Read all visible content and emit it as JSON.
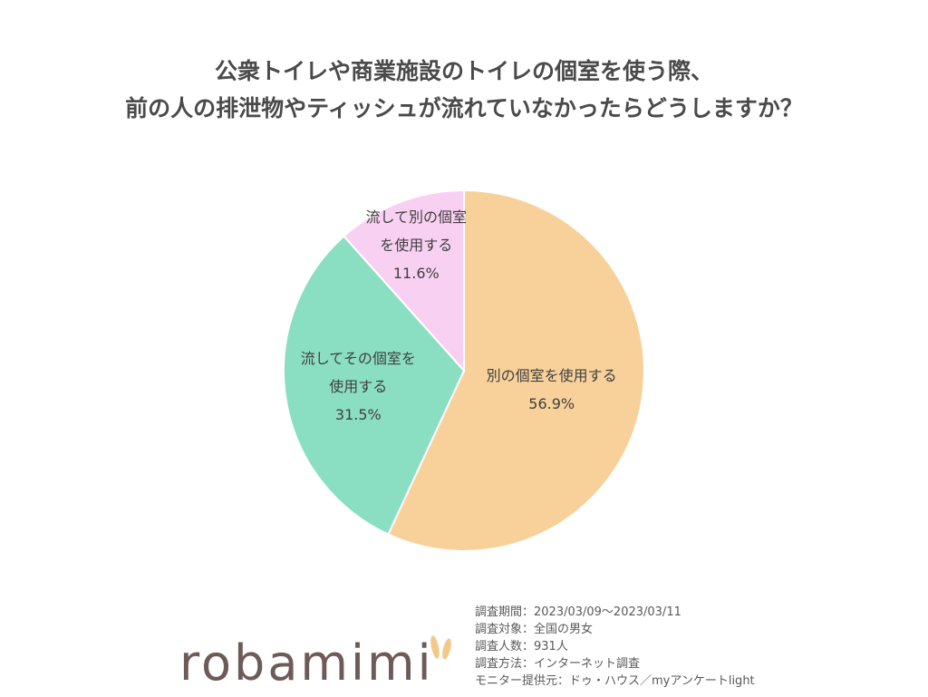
{
  "title": {
    "line1": "公衆トイレや商業施設のトイレの個室を使う際、",
    "line2": "前の人の排泄物やティッシュが流れていなかったらどうしますか？"
  },
  "chart_data": {
    "type": "pie",
    "title": "公衆トイレや商業施設のトイレの個室を使う際、前の人の排泄物やティッシュが流れていなかったらどうしますか？",
    "slices": [
      {
        "label_line1": "別の個室を使用する",
        "label_line2": "",
        "value": 56.9,
        "value_label": "56.9%",
        "color": "#f8d19a"
      },
      {
        "label_line1": "流してその個室を",
        "label_line2": "使用する",
        "value": 31.5,
        "value_label": "31.5%",
        "color": "#8adfc3"
      },
      {
        "label_line1": "流して別の個室",
        "label_line2": "を使用する",
        "value": 11.6,
        "value_label": "11.6%",
        "color": "#f8d0f2"
      }
    ],
    "start": "12 o'clock",
    "direction": "clockwise"
  },
  "logo": {
    "text": "robamimi",
    "accent_color": "#f3c98b"
  },
  "survey": {
    "period": "調査期間：2023/03/09～2023/03/11",
    "target": "調査対象：全国の男女",
    "count": "調査人数：931人",
    "method": "調査方法：インターネット調査",
    "provider": "モニター提供元：ドゥ・ハウス／myアンケートlight"
  }
}
